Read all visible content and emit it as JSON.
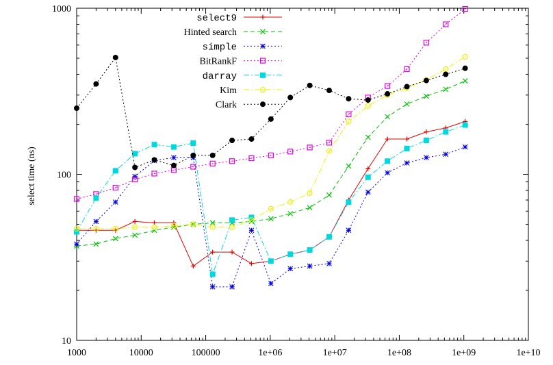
{
  "chart_data": {
    "type": "line",
    "title": "",
    "xlabel": "",
    "ylabel": "select time (ns)",
    "xscale": "log",
    "yscale": "log",
    "xlim": [
      1000,
      10000000000
    ],
    "ylim": [
      10,
      1000
    ],
    "grid": false,
    "legend_position": "top-center",
    "x_tick_labels": [
      "1000",
      "10000",
      "100000",
      "1e+06",
      "1e+07",
      "1e+08",
      "1e+09",
      "1e+10"
    ],
    "y_tick_labels": [
      "10",
      "100",
      "1000"
    ],
    "series": [
      {
        "name": "select9",
        "color": "#e00000",
        "marker": "plus",
        "dash": "",
        "font": "mono",
        "points": [
          [
            1000,
            46
          ],
          [
            2000,
            46
          ],
          [
            4000,
            46
          ],
          [
            8000,
            52
          ],
          [
            16000,
            51
          ],
          [
            32000,
            51
          ],
          [
            64000,
            28
          ],
          [
            128000,
            34
          ],
          [
            256000,
            34
          ],
          [
            512000,
            29
          ],
          [
            1024000,
            30
          ],
          [
            2048000,
            33
          ],
          [
            4096000,
            35
          ],
          [
            8192000,
            42
          ],
          [
            16384000,
            70
          ],
          [
            32768000,
            108
          ],
          [
            65536000,
            163
          ],
          [
            131072000,
            163
          ],
          [
            262144000,
            180
          ],
          [
            524288000,
            190
          ],
          [
            1048576000,
            208
          ]
        ]
      },
      {
        "name": "Hinted search",
        "color": "#00c000",
        "marker": "x",
        "dash": "6,4",
        "font": "serif",
        "points": [
          [
            1000,
            37
          ],
          [
            2000,
            38
          ],
          [
            4000,
            41
          ],
          [
            8000,
            43
          ],
          [
            16000,
            46
          ],
          [
            32000,
            48
          ],
          [
            64000,
            50
          ],
          [
            128000,
            51
          ],
          [
            256000,
            51
          ],
          [
            512000,
            52
          ],
          [
            1024000,
            54
          ],
          [
            2048000,
            58
          ],
          [
            4096000,
            63
          ],
          [
            8192000,
            75
          ],
          [
            16384000,
            112
          ],
          [
            32768000,
            167
          ],
          [
            65536000,
            222
          ],
          [
            131072000,
            265
          ],
          [
            262144000,
            295
          ],
          [
            524288000,
            325
          ],
          [
            1048576000,
            365
          ]
        ]
      },
      {
        "name": "simple",
        "color": "#0000e0",
        "marker": "asterisk",
        "dash": "2,3",
        "font": "mono",
        "points": [
          [
            1000,
            38
          ],
          [
            2000,
            52
          ],
          [
            4000,
            68
          ],
          [
            8000,
            97
          ],
          [
            16000,
            121
          ],
          [
            32000,
            126
          ],
          [
            64000,
            126
          ],
          [
            128000,
            21
          ],
          [
            256000,
            21
          ],
          [
            512000,
            46
          ],
          [
            1024000,
            22
          ],
          [
            2048000,
            27
          ],
          [
            4096000,
            28
          ],
          [
            8192000,
            29
          ],
          [
            16384000,
            46
          ],
          [
            32768000,
            78
          ],
          [
            65536000,
            102
          ],
          [
            131072000,
            117
          ],
          [
            262144000,
            126
          ],
          [
            524288000,
            132
          ],
          [
            1048576000,
            146
          ]
        ]
      },
      {
        "name": "BitRankF",
        "color": "#e000e0",
        "marker": "box",
        "dash": "2,3",
        "font": "serif",
        "points": [
          [
            1000,
            71
          ],
          [
            2000,
            76
          ],
          [
            4000,
            83
          ],
          [
            8000,
            93
          ],
          [
            16000,
            101
          ],
          [
            32000,
            106
          ],
          [
            64000,
            111
          ],
          [
            128000,
            116
          ],
          [
            256000,
            120
          ],
          [
            512000,
            125
          ],
          [
            1024000,
            130
          ],
          [
            2048000,
            137
          ],
          [
            4096000,
            145
          ],
          [
            8192000,
            155
          ],
          [
            16384000,
            230
          ],
          [
            32768000,
            290
          ],
          [
            65536000,
            340
          ],
          [
            131072000,
            430
          ],
          [
            262144000,
            620
          ],
          [
            524288000,
            800
          ],
          [
            1048576000,
            990
          ]
        ]
      },
      {
        "name": "darray",
        "color": "#00d8e0",
        "marker": "fbox",
        "dash": "8,3,2,3",
        "font": "mono",
        "points": [
          [
            1000,
            45
          ],
          [
            2000,
            72
          ],
          [
            4000,
            105
          ],
          [
            8000,
            133
          ],
          [
            16000,
            151
          ],
          [
            32000,
            146
          ],
          [
            64000,
            154
          ],
          [
            128000,
            25
          ],
          [
            256000,
            53
          ],
          [
            512000,
            55
          ],
          [
            1024000,
            30
          ],
          [
            2048000,
            33
          ],
          [
            4096000,
            35
          ],
          [
            8192000,
            42
          ],
          [
            16384000,
            68
          ],
          [
            32768000,
            96
          ],
          [
            65536000,
            120
          ],
          [
            131072000,
            143
          ],
          [
            262144000,
            160
          ],
          [
            524288000,
            180
          ],
          [
            1048576000,
            198
          ]
        ]
      },
      {
        "name": "Kim",
        "color": "#f0f000",
        "marker": "circle",
        "dash": "8,3,2,3",
        "font": "serif",
        "points": [
          [
            1000,
            47
          ],
          [
            2000,
            47
          ],
          [
            4000,
            47
          ],
          [
            8000,
            48
          ],
          [
            16000,
            48
          ],
          [
            32000,
            49
          ],
          [
            64000,
            50
          ],
          [
            128000,
            48
          ],
          [
            256000,
            48
          ],
          [
            512000,
            53
          ],
          [
            1024000,
            62
          ],
          [
            2048000,
            68
          ],
          [
            4096000,
            77
          ],
          [
            8192000,
            138
          ],
          [
            16384000,
            208
          ],
          [
            32768000,
            258
          ],
          [
            65536000,
            300
          ],
          [
            131072000,
            330
          ],
          [
            262144000,
            370
          ],
          [
            524288000,
            430
          ],
          [
            1048576000,
            510
          ]
        ]
      },
      {
        "name": "Clark",
        "color": "#000000",
        "marker": "fcircle",
        "dash": "2,3",
        "font": "serif",
        "points": [
          [
            1000,
            250
          ],
          [
            2000,
            350
          ],
          [
            4000,
            505
          ],
          [
            8000,
            110
          ],
          [
            16000,
            122
          ],
          [
            32000,
            113
          ],
          [
            64000,
            130
          ],
          [
            128000,
            130
          ],
          [
            256000,
            160
          ],
          [
            512000,
            163
          ],
          [
            1024000,
            215
          ],
          [
            2048000,
            290
          ],
          [
            4096000,
            343
          ],
          [
            8192000,
            320
          ],
          [
            16384000,
            285
          ],
          [
            32768000,
            280
          ],
          [
            65536000,
            305
          ],
          [
            131072000,
            337
          ],
          [
            262144000,
            367
          ],
          [
            524288000,
            400
          ],
          [
            1048576000,
            435
          ]
        ]
      }
    ]
  }
}
